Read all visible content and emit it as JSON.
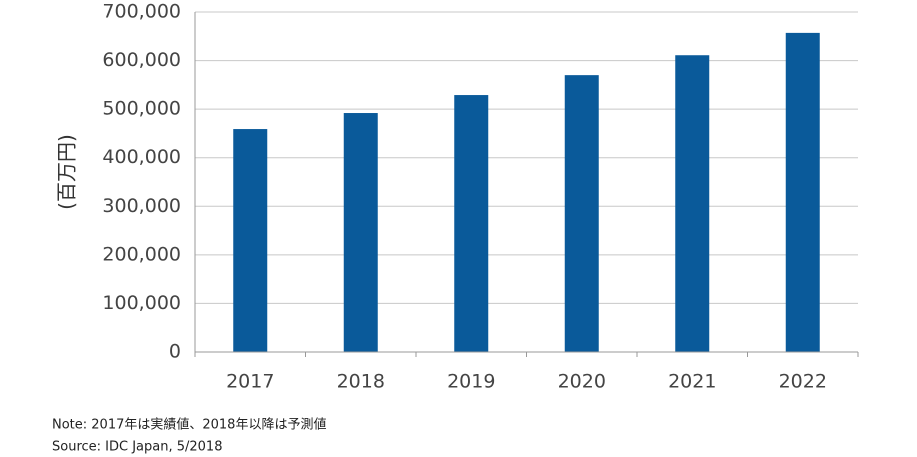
{
  "chart_data": {
    "type": "bar",
    "y_label": "(百万円)",
    "categories": [
      "2017",
      "2018",
      "2019",
      "2020",
      "2021",
      "2022"
    ],
    "values": [
      459000,
      492000,
      529000,
      570000,
      611000,
      657000
    ],
    "color": "#0a5a9a",
    "ylim": [
      0,
      700000
    ],
    "yticks": [
      0,
      {
        "value": 100000,
        "label": "100,000"
      },
      {
        "value": 200000,
        "label": "200,000"
      },
      {
        "value": 300000,
        "label": "300,000"
      },
      {
        "value": 400000,
        "label": "400,000"
      },
      {
        "value": 500000,
        "label": "500,000"
      },
      {
        "value": 600000,
        "label": "600,000"
      },
      {
        "value": 700000,
        "label": "700,000"
      }
    ],
    "grid": true,
    "note": "Note: 2017年は実績値、2018年以降は予測値",
    "source": "Source: IDC Japan, 5/2018"
  }
}
